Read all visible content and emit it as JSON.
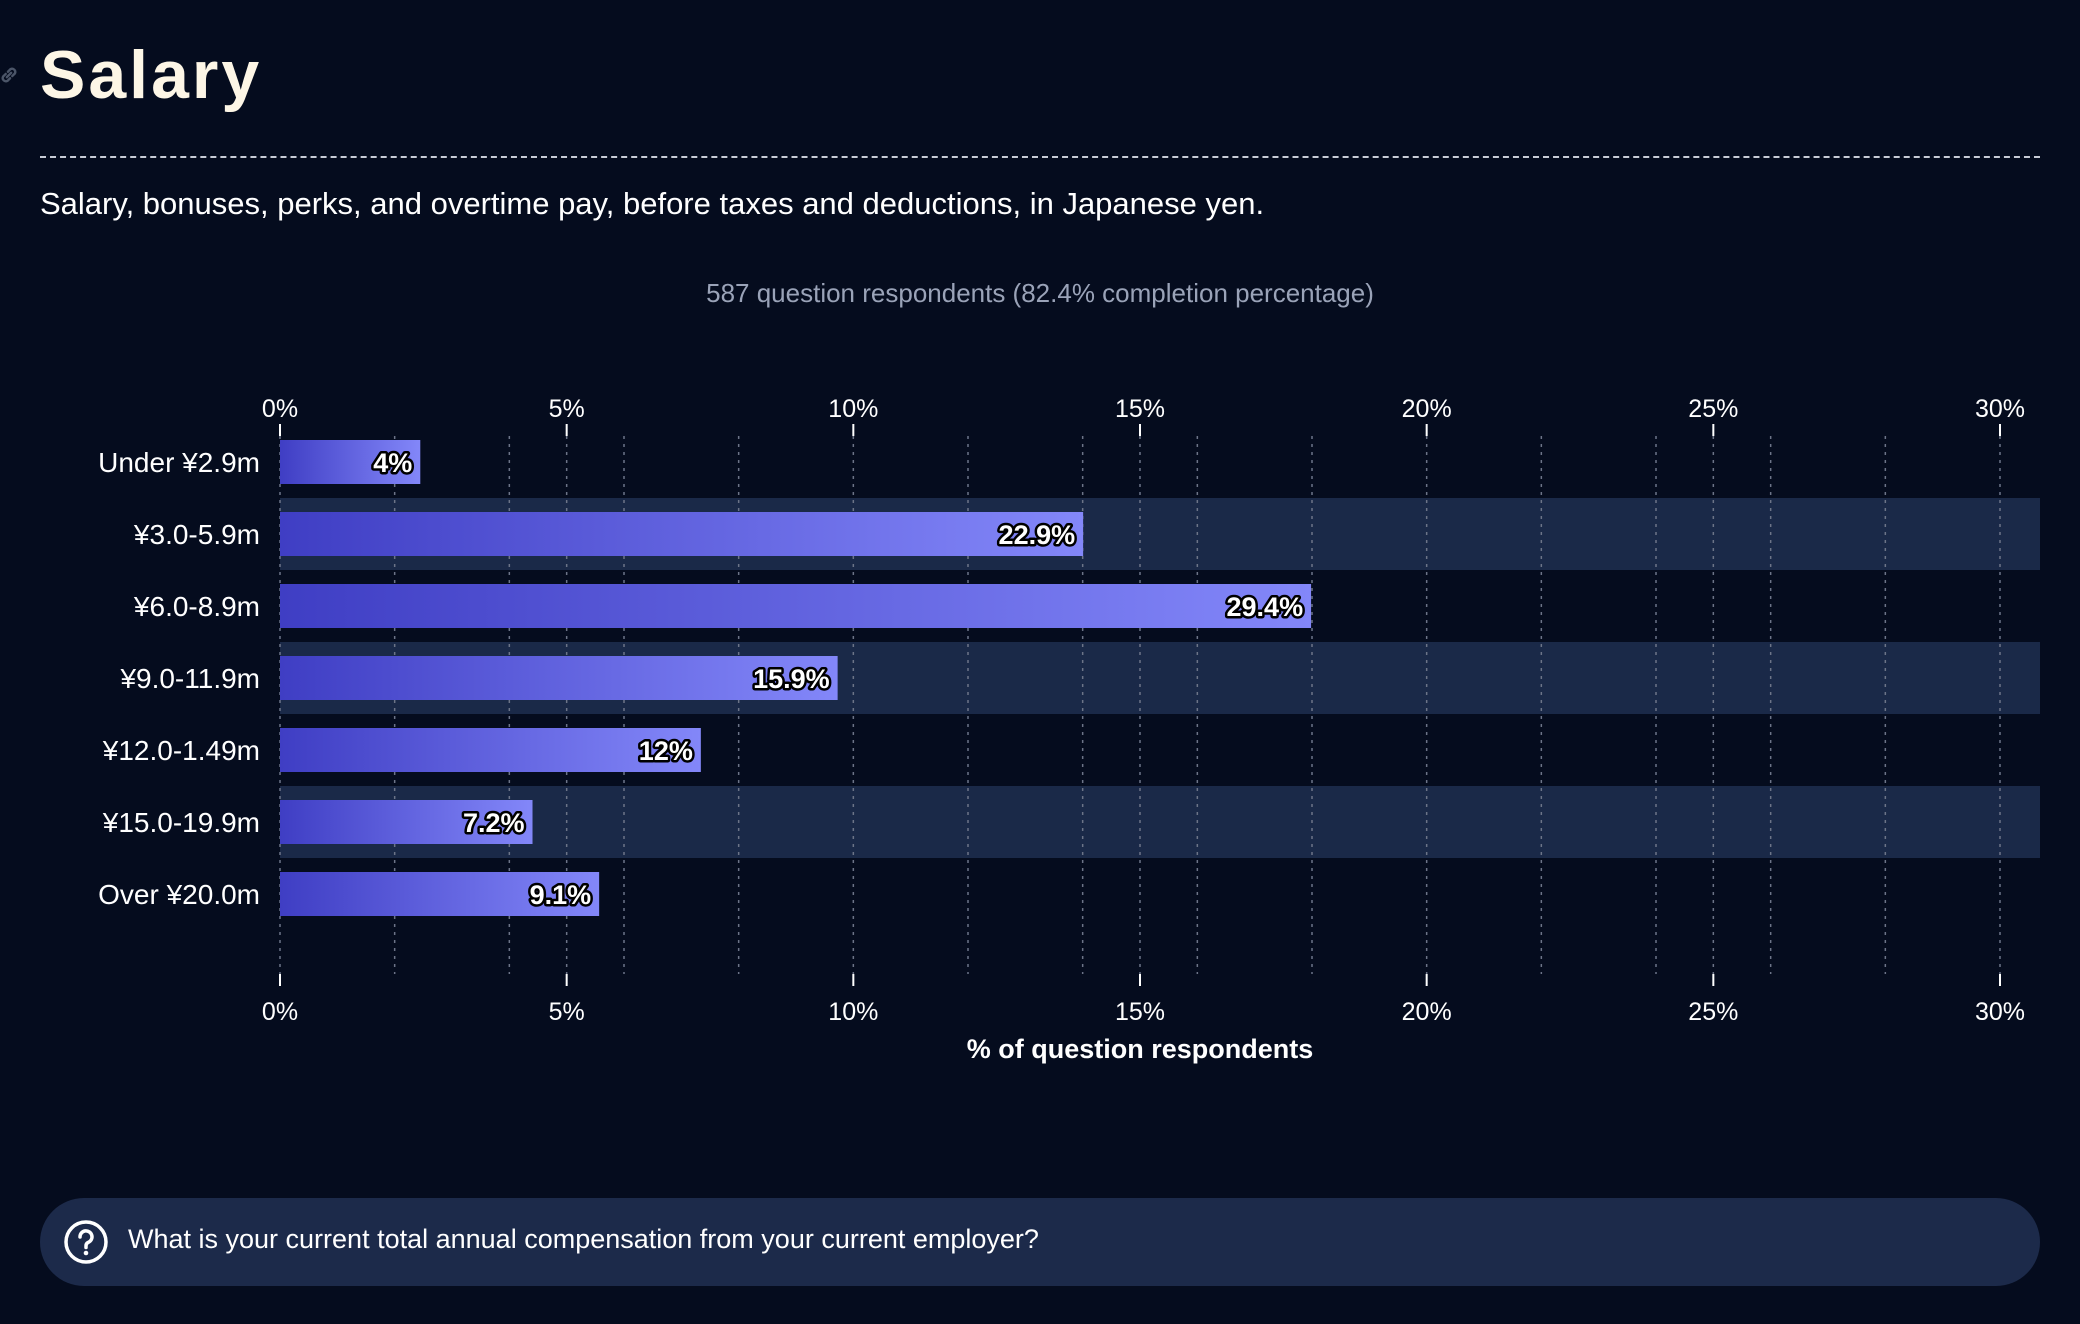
{
  "title": "Salary",
  "subtitle": "Salary, bonuses, perks, and overtime pay, before taxes and deductions, in Japanese yen.",
  "respondents_note": "587 question respondents (82.4% completion percentage)",
  "question": "What is your current total annual compensation from your current employer?",
  "icons": {
    "link": "link-icon",
    "question": "question-circle-icon"
  },
  "colors": {
    "background": "#050c1e",
    "band": "#1a2948",
    "bar_start": "#3f3ec4",
    "bar_end": "#8387f9",
    "title": "#fdf6e6"
  },
  "chart_data": {
    "type": "bar",
    "orientation": "horizontal",
    "categories": [
      "Under ¥2.9m",
      "¥3.0-5.9m",
      "¥6.0-8.9m",
      "¥9.0-11.9m",
      "¥12.0-1.49m",
      "¥15.0-19.9m",
      "Over ¥20.0m"
    ],
    "values": [
      4,
      22.9,
      29.4,
      15.9,
      12,
      7.2,
      9.1
    ],
    "value_labels": [
      "4%",
      "22.9%",
      "29.4%",
      "15.9%",
      "12%",
      "7.2%",
      "9.1%"
    ],
    "xlabel": "% of question respondents",
    "xlim": [
      0,
      30.7
    ],
    "xticks": [
      0,
      5,
      10,
      15,
      20,
      25,
      30
    ],
    "xtick_labels": [
      "0%",
      "5%",
      "10%",
      "15%",
      "20%",
      "25%",
      "30%"
    ],
    "minor_grid_step": 2,
    "grid": true,
    "scale": "nonlinear axis (bars drawn at roughly 0.61× their labeled percent relative to the tick marks)"
  }
}
